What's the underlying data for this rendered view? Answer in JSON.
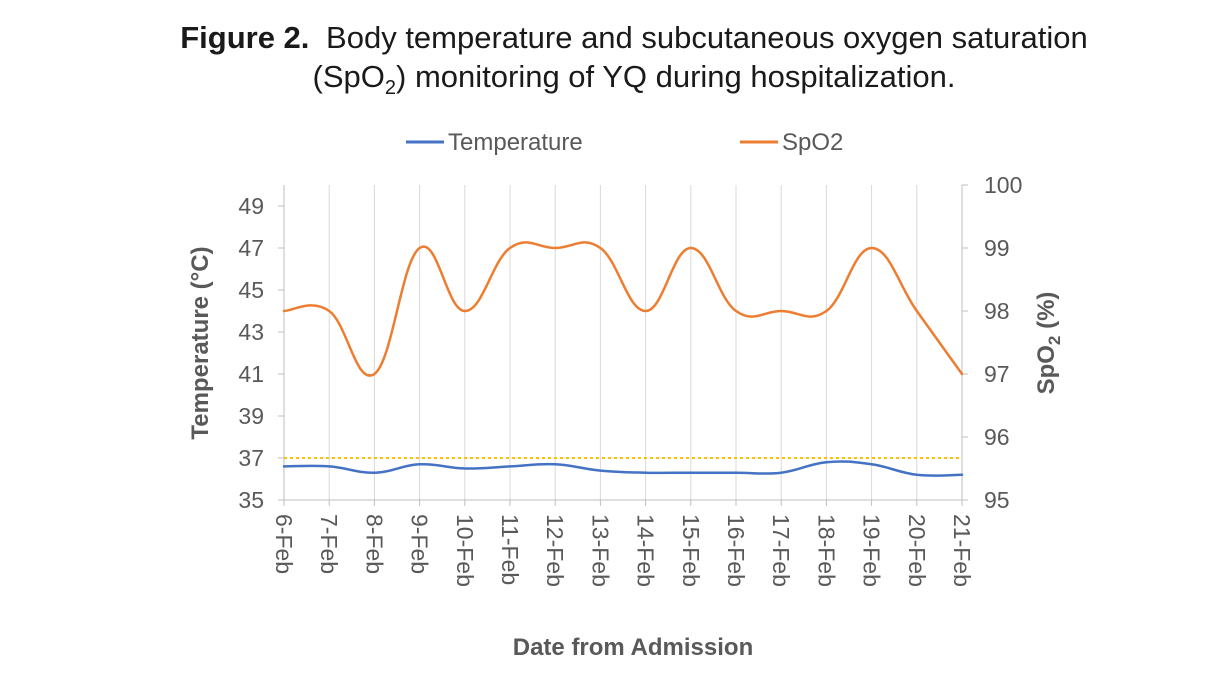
{
  "figure": {
    "label": "Figure 2.",
    "title_line1": "Body temperature and subcutaneous oxygen saturation",
    "title_line2_open": "(SpO",
    "title_line2_sub": "2",
    "title_line2_close": ") monitoring of YQ during hospitalization."
  },
  "chart_data": {
    "type": "line",
    "xlabel": "Date from Admission",
    "ylabel_left": "Temperature (°C)",
    "ylabel_right_main": "SpO",
    "ylabel_right_sub": "2",
    "ylabel_right_unit": " (%)",
    "categories": [
      "6-Feb",
      "7-Feb",
      "8-Feb",
      "9-Feb",
      "10-Feb",
      "11-Feb",
      "12-Feb",
      "13-Feb",
      "14-Feb",
      "15-Feb",
      "16-Feb",
      "17-Feb",
      "18-Feb",
      "19-Feb",
      "20-Feb",
      "21-Feb"
    ],
    "y_left": {
      "min": 35,
      "max": 50,
      "ticks": [
        35,
        37,
        39,
        41,
        43,
        45,
        47,
        49
      ]
    },
    "y_right": {
      "min": 95,
      "max": 100,
      "ticks": [
        95,
        96,
        97,
        98,
        99,
        100
      ]
    },
    "legend_position": "top",
    "series": [
      {
        "name": "Temperature",
        "axis": "left",
        "color": "#4472C4",
        "smooth": true,
        "values": [
          36.6,
          36.6,
          36.3,
          36.7,
          36.5,
          36.6,
          36.7,
          36.4,
          36.3,
          36.3,
          36.3,
          36.3,
          36.8,
          36.7,
          36.2,
          36.2
        ]
      },
      {
        "name": "SpO2",
        "axis": "right",
        "color": "#ED7D31",
        "smooth": true,
        "values": [
          98,
          98,
          97,
          99,
          98,
          99,
          99,
          99,
          98,
          99,
          98,
          98,
          98,
          99,
          98,
          97
        ]
      }
    ],
    "reference_line": {
      "axis": "left",
      "value": 37,
      "color": "#FFC000",
      "style": "dotted"
    }
  }
}
